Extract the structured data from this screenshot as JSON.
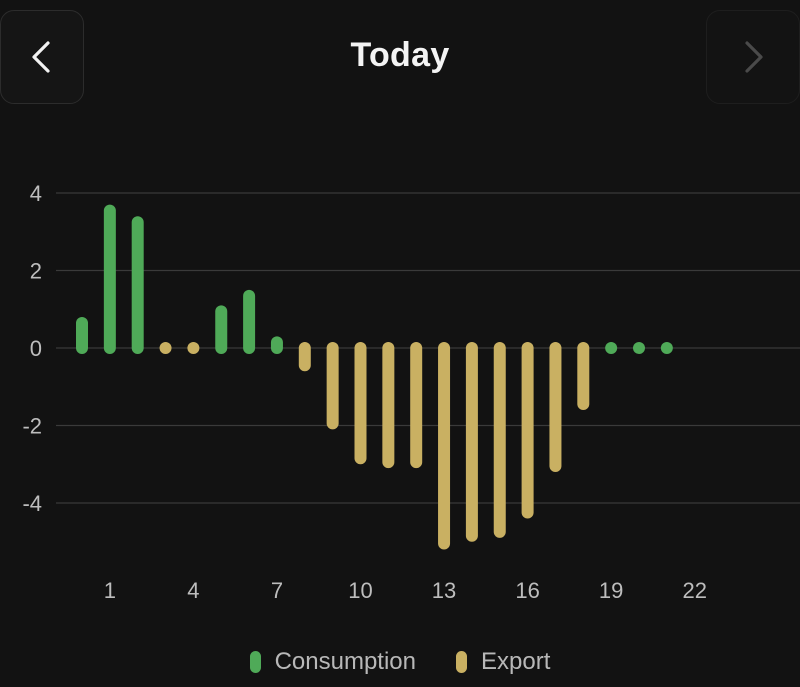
{
  "header": {
    "title": "Today"
  },
  "colors": {
    "consumption": "#4faa58",
    "export": "#c9b062",
    "grid": "#3a3a3a",
    "tick_text": "#bdbdbd"
  },
  "icons": {
    "prev": "chevron-left-icon",
    "next": "chevron-right-icon"
  },
  "chart_data": {
    "type": "bar",
    "title": "",
    "xlabel": "",
    "ylabel": "",
    "ylim": [
      -5.5,
      4.5
    ],
    "yticks": [
      4,
      2,
      0,
      -2,
      -4
    ],
    "xticks": [
      1,
      4,
      7,
      10,
      13,
      16,
      19,
      22
    ],
    "xlim": [
      -1,
      25
    ],
    "grid": true,
    "legend_position": "bottom-center",
    "categories": [
      0,
      1,
      2,
      3,
      4,
      5,
      6,
      7,
      8,
      9,
      10,
      11,
      12,
      13,
      14,
      15,
      16,
      17,
      18,
      19,
      20,
      21
    ],
    "series": [
      {
        "name": "Consumption",
        "key": "consumption",
        "values": [
          0.8,
          3.7,
          3.4,
          0,
          0,
          1.1,
          1.5,
          0.3,
          0,
          0,
          0,
          0,
          0,
          0,
          0,
          0,
          0,
          0,
          0,
          0,
          0,
          0
        ]
      },
      {
        "name": "Export",
        "key": "export",
        "values": [
          0,
          0,
          0,
          0,
          0,
          0,
          0,
          0,
          -0.6,
          -2.1,
          -3.0,
          -3.1,
          -3.1,
          -5.2,
          -5.0,
          -4.9,
          -4.4,
          -3.2,
          -1.6,
          0,
          0,
          0
        ]
      }
    ]
  }
}
